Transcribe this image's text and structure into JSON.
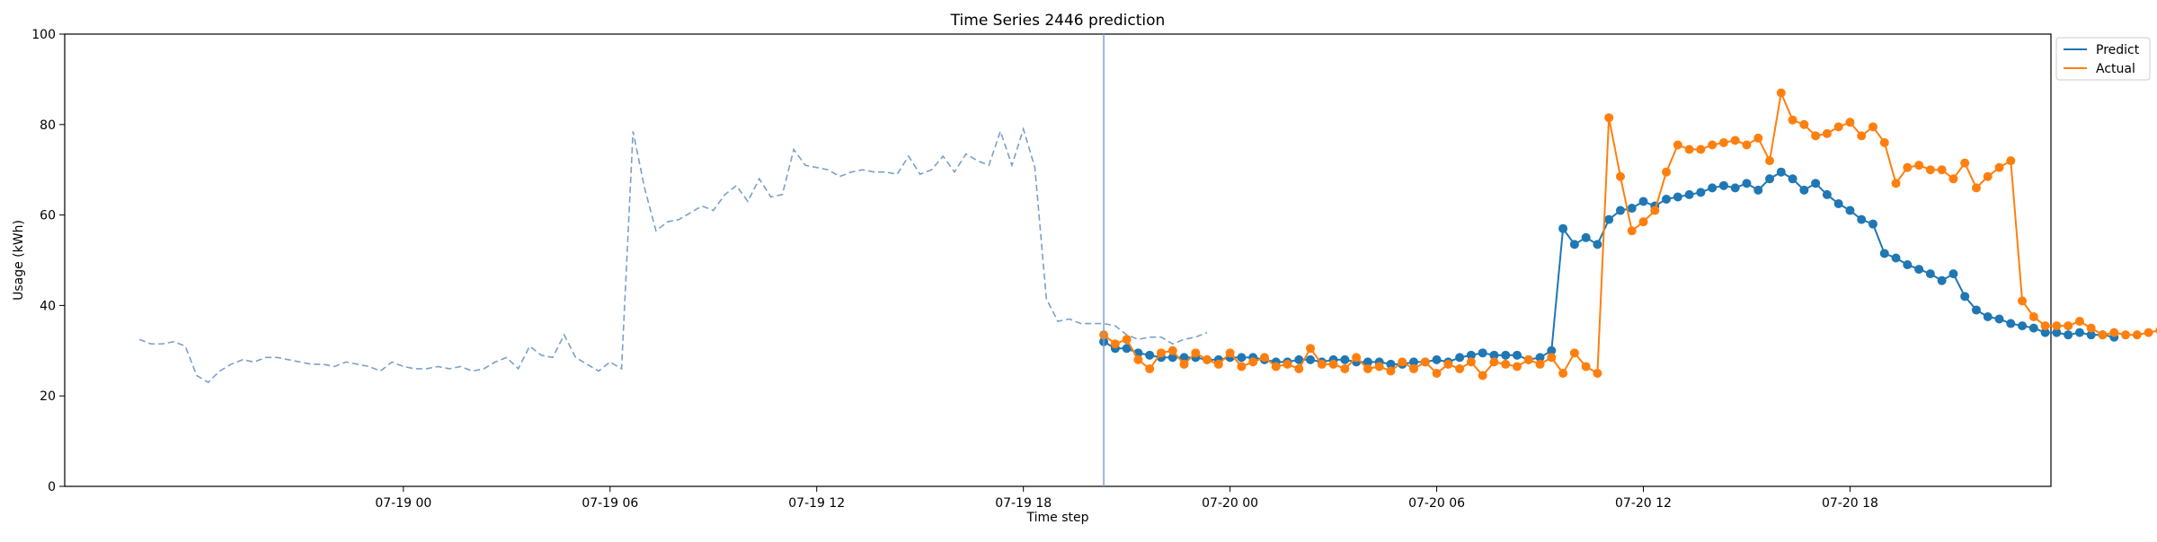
{
  "chart_data": {
    "type": "line",
    "title": "Time Series 2446 prediction",
    "xlabel": "Time step",
    "ylabel": "Usage (kWh)",
    "ylim": [
      0,
      100
    ],
    "yticks": [
      0,
      20,
      40,
      60,
      80,
      100
    ],
    "xlim": [
      "2024-07-18 14:10",
      "2024-07-20 23:50"
    ],
    "xticks": [
      {
        "t": "2024-07-19 00:00",
        "label": "07-19 00"
      },
      {
        "t": "2024-07-19 06:00",
        "label": "07-19 06"
      },
      {
        "t": "2024-07-19 12:00",
        "label": "07-19 12"
      },
      {
        "t": "2024-07-19 18:00",
        "label": "07-19 18"
      },
      {
        "t": "2024-07-20 00:00",
        "label": "07-20 00"
      },
      {
        "t": "2024-07-20 06:00",
        "label": "07-20 06"
      },
      {
        "t": "2024-07-20 12:00",
        "label": "07-20 12"
      },
      {
        "t": "2024-07-20 18:00",
        "label": "07-20 18"
      }
    ],
    "interval_minutes": 20,
    "forecast_start": "2024-07-19 20:20",
    "grid": false,
    "legend_position": "upper right outside",
    "colors": {
      "predict": "#1f77b4",
      "actual": "#ff7f0e",
      "history": "#7aa0c8",
      "divider": "#7f9fcf"
    },
    "history": {
      "start": "2024-07-18 16:20",
      "values": [
        32.5,
        31.5,
        31.5,
        32.0,
        31.0,
        24.5,
        23.0,
        25.5,
        27.0,
        28.0,
        27.5,
        28.5,
        28.5,
        28.0,
        27.5,
        27.0,
        27.0,
        26.5,
        27.5,
        27.0,
        26.5,
        25.5,
        27.5,
        26.5,
        26.0,
        26.0,
        26.5,
        26.0,
        26.5,
        25.5,
        26.0,
        27.5,
        28.5,
        26.0,
        31.0,
        29.0,
        28.5,
        33.5,
        28.5,
        27.0,
        25.5,
        27.5,
        26.0,
        78.5,
        66.0,
        56.5,
        58.5,
        59.0,
        60.5,
        62.0,
        61.0,
        64.5,
        66.5,
        63.0,
        68.0,
        64.0,
        64.5,
        74.5,
        71.0,
        70.5,
        70.0,
        68.5,
        69.5,
        70.0,
        69.5,
        69.5,
        69.0,
        73.0,
        69.0,
        70.0,
        73.0,
        69.5,
        73.5,
        72.0,
        71.0,
        78.5,
        71.0,
        79.0,
        70.5,
        41.5,
        36.5,
        37.0,
        36.0,
        36.0,
        36.0,
        35.5,
        33.5,
        32.5,
        33.0,
        33.0,
        31.5,
        32.5,
        33.0,
        34.0
      ]
    },
    "series": [
      {
        "name": "Predict",
        "start": "2024-07-19 20:20",
        "values": [
          32.0,
          30.5,
          30.5,
          29.5,
          29.0,
          28.5,
          28.5,
          28.5,
          28.5,
          28.0,
          28.0,
          28.5,
          28.5,
          28.5,
          28.0,
          27.5,
          27.5,
          28.0,
          28.0,
          27.5,
          28.0,
          28.0,
          27.5,
          27.5,
          27.5,
          27.0,
          27.0,
          27.5,
          27.5,
          28.0,
          27.5,
          28.5,
          29.0,
          29.5,
          29.0,
          29.0,
          29.0,
          28.0,
          28.5,
          30.0,
          57.0,
          53.5,
          55.0,
          53.5,
          59.0,
          61.0,
          61.5,
          63.0,
          62.0,
          63.5,
          64.0,
          64.5,
          65.0,
          66.0,
          66.5,
          66.0,
          67.0,
          65.5,
          68.0,
          69.5,
          68.0,
          65.5,
          67.0,
          64.5,
          62.5,
          61.0,
          59.0,
          58.0,
          51.5,
          50.5,
          49.0,
          48.0,
          47.0,
          45.5,
          47.0,
          42.0,
          39.0,
          37.5,
          37.0,
          36.0,
          35.5,
          35.0,
          34.0,
          34.0,
          33.5,
          34.0,
          33.5,
          33.5,
          33.0
        ]
      },
      {
        "name": "Actual",
        "start": "2024-07-19 20:20",
        "values": [
          33.5,
          31.5,
          32.5,
          28.0,
          26.0,
          29.5,
          30.0,
          27.0,
          29.5,
          28.0,
          27.0,
          29.5,
          26.5,
          27.5,
          28.5,
          26.5,
          27.0,
          26.0,
          30.5,
          27.0,
          27.0,
          26.0,
          28.5,
          26.0,
          26.5,
          25.5,
          27.5,
          26.0,
          27.5,
          25.0,
          27.0,
          26.0,
          27.5,
          24.5,
          27.5,
          27.0,
          26.5,
          28.0,
          27.0,
          28.5,
          25.0,
          29.5,
          26.5,
          25.0,
          81.5,
          68.5,
          56.5,
          58.5,
          61.0,
          69.5,
          75.5,
          74.5,
          74.5,
          75.5,
          76.0,
          76.5,
          75.5,
          77.0,
          72.0,
          87.0,
          81.0,
          80.0,
          77.5,
          78.0,
          79.5,
          80.5,
          77.5,
          79.5,
          76.0,
          67.0,
          70.5,
          71.0,
          70.0,
          70.0,
          68.0,
          71.5,
          66.0,
          68.5,
          70.5,
          72.0,
          41.0,
          37.5,
          35.5,
          35.5,
          35.5,
          36.5,
          35.0,
          33.5,
          34.0,
          33.5,
          33.5,
          34.0,
          34.5,
          34.5
        ]
      }
    ]
  }
}
